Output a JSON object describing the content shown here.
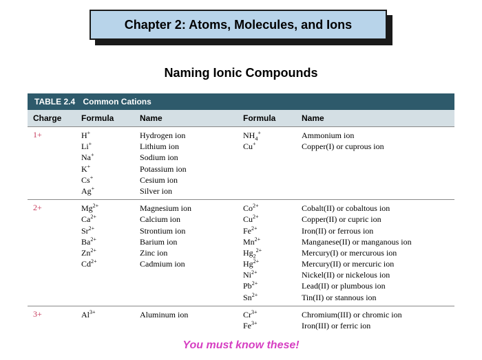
{
  "chapter": {
    "banner": "Chapter 2: Atoms, Molecules, and Ions",
    "subtitle": "Naming Ionic Compounds",
    "footer": "You must know these!"
  },
  "colors": {
    "banner_bg": "#b8d4ea",
    "banner_border": "#1a1a1a",
    "table_title_bg": "#2e5a6b",
    "table_header_bg": "#d4dfe4",
    "charge_color": "#c63a5b",
    "footer_color": "#d63fc2"
  },
  "table": {
    "number": "TABLE 2.4",
    "title": "Common Cations",
    "columns": [
      "Charge",
      "Formula",
      "Name",
      "Formula",
      "Name"
    ],
    "groups": [
      {
        "charge": "1+",
        "left": [
          {
            "formula_base": "H",
            "formula_sub": "",
            "formula_sup": "+",
            "name": "Hydrogen ion"
          },
          {
            "formula_base": "Li",
            "formula_sub": "",
            "formula_sup": "+",
            "name": "Lithium ion"
          },
          {
            "formula_base": "Na",
            "formula_sub": "",
            "formula_sup": "+",
            "name": "Sodium ion"
          },
          {
            "formula_base": "K",
            "formula_sub": "",
            "formula_sup": "+",
            "name": "Potassium ion"
          },
          {
            "formula_base": "Cs",
            "formula_sub": "",
            "formula_sup": "+",
            "name": "Cesium ion"
          },
          {
            "formula_base": "Ag",
            "formula_sub": "",
            "formula_sup": "+",
            "name": "Silver ion"
          }
        ],
        "right": [
          {
            "formula_base": "NH",
            "formula_sub": "4",
            "formula_sup": "+",
            "name": "Ammonium ion"
          },
          {
            "formula_base": "Cu",
            "formula_sub": "",
            "formula_sup": "+",
            "name": "Copper(I) or cuprous ion"
          }
        ]
      },
      {
        "charge": "2+",
        "left": [
          {
            "formula_base": "Mg",
            "formula_sub": "",
            "formula_sup": "2+",
            "name": "Magnesium ion"
          },
          {
            "formula_base": "Ca",
            "formula_sub": "",
            "formula_sup": "2+",
            "name": "Calcium ion"
          },
          {
            "formula_base": "Sr",
            "formula_sub": "",
            "formula_sup": "2+",
            "name": "Strontium ion"
          },
          {
            "formula_base": "Ba",
            "formula_sub": "",
            "formula_sup": "2+",
            "name": "Barium ion"
          },
          {
            "formula_base": "Zn",
            "formula_sub": "",
            "formula_sup": "2+",
            "name": "Zinc ion"
          },
          {
            "formula_base": "Cd",
            "formula_sub": "",
            "formula_sup": "2+",
            "name": "Cadmium ion"
          }
        ],
        "right": [
          {
            "formula_base": "Co",
            "formula_sub": "",
            "formula_sup": "2+",
            "name": "Cobalt(II) or cobaltous ion"
          },
          {
            "formula_base": "Cu",
            "formula_sub": "",
            "formula_sup": "2+",
            "name": "Copper(II) or cupric ion"
          },
          {
            "formula_base": "Fe",
            "formula_sub": "",
            "formula_sup": "2+",
            "name": "Iron(II) or ferrous ion"
          },
          {
            "formula_base": "Mn",
            "formula_sub": "",
            "formula_sup": "2+",
            "name": "Manganese(II) or manganous ion"
          },
          {
            "formula_base": "Hg",
            "formula_sub": "2",
            "formula_sup": "2+",
            "name": "Mercury(I) or mercurous ion"
          },
          {
            "formula_base": "Hg",
            "formula_sub": "",
            "formula_sup": "2+",
            "name": "Mercury(II) or mercuric ion"
          },
          {
            "formula_base": "Ni",
            "formula_sub": "",
            "formula_sup": "2+",
            "name": "Nickel(II) or nickelous ion"
          },
          {
            "formula_base": "Pb",
            "formula_sub": "",
            "formula_sup": "2+",
            "name": "Lead(II) or plumbous ion"
          },
          {
            "formula_base": "Sn",
            "formula_sub": "",
            "formula_sup": "2+",
            "name": "Tin(II) or stannous ion"
          }
        ]
      },
      {
        "charge": "3+",
        "left": [
          {
            "formula_base": "Al",
            "formula_sub": "",
            "formula_sup": "3+",
            "name": "Aluminum ion"
          }
        ],
        "right": [
          {
            "formula_base": "Cr",
            "formula_sub": "",
            "formula_sup": "3+",
            "name": "Chromium(III) or chromic ion"
          },
          {
            "formula_base": "Fe",
            "formula_sub": "",
            "formula_sup": "3+",
            "name": "Iron(III) or ferric ion"
          }
        ]
      }
    ]
  }
}
